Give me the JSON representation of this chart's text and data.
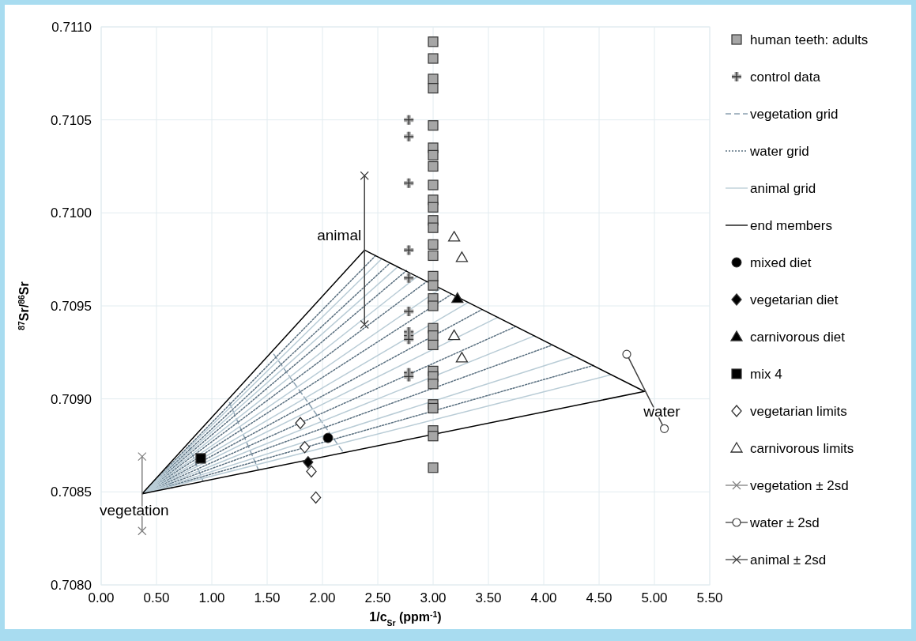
{
  "chart_data": {
    "type": "scatter",
    "xlabel": "1/c$_{Sr}$ (ppm$^{-1}$)",
    "ylabel": "$^{87}$Sr/$^{86}$Sr",
    "xlim": [
      0,
      5.5
    ],
    "ylim": [
      0.708,
      0.711
    ],
    "xticks": [
      {
        "value": 0,
        "label": "0.00"
      },
      {
        "value": 0.5,
        "label": "0.50"
      },
      {
        "value": 1,
        "label": "1.00"
      },
      {
        "value": 1.5,
        "label": "1.50"
      },
      {
        "value": 2,
        "label": "2.00"
      },
      {
        "value": 2.5,
        "label": "2.50"
      },
      {
        "value": 3,
        "label": "3.00"
      },
      {
        "value": 3.5,
        "label": "3.50"
      },
      {
        "value": 4,
        "label": "4.00"
      },
      {
        "value": 4.5,
        "label": "4.50"
      },
      {
        "value": 5,
        "label": "5.00"
      },
      {
        "value": 5.5,
        "label": "5.50"
      }
    ],
    "yticks": [
      {
        "value": 0.708,
        "label": "0.7080"
      },
      0.7085,
      {
        "value": 0.709,
        "label": "0.7090"
      },
      0.7095,
      {
        "value": 0.71,
        "label": "0.7100"
      },
      0.7105,
      {
        "value": 0.711,
        "label": "0.7110"
      }
    ],
    "grid": true,
    "legend": "right",
    "annotations": [
      {
        "text": "animal",
        "x": 2.38,
        "y": 0.7098
      },
      {
        "text": "water",
        "x": 4.91,
        "y": 0.70904
      },
      {
        "text": "vegetation",
        "x": 0.37,
        "y": 0.70849
      }
    ],
    "series": [
      {
        "name": "human teeth: adults",
        "type": "scatter",
        "marker": "square",
        "color": "#a6a6a6",
        "x": [
          3,
          3,
          3,
          3,
          3,
          3,
          3,
          3,
          3,
          3,
          3,
          3,
          3,
          3,
          3,
          3,
          3,
          3,
          3,
          3,
          3,
          3,
          3,
          3,
          3,
          3,
          3,
          3,
          3,
          3
        ],
        "values": [
          0.71092,
          0.71083,
          0.71072,
          0.71067,
          0.71047,
          0.71035,
          0.71031,
          0.71025,
          0.71015,
          0.71007,
          0.71003,
          0.70996,
          0.70992,
          0.70983,
          0.70977,
          0.70966,
          0.70961,
          0.70954,
          0.7095,
          0.70938,
          0.70934,
          0.70929,
          0.70915,
          0.70912,
          0.70908,
          0.70897,
          0.70895,
          0.70883,
          0.7088,
          0.70863
        ]
      },
      {
        "name": "control data",
        "type": "scatter",
        "marker": "cross",
        "color": "#a6a6a6",
        "x": [
          2.78,
          2.78,
          2.78,
          2.78,
          2.78,
          2.78,
          2.78,
          2.78,
          2.78,
          2.78,
          2.78
        ],
        "values": [
          0.7105,
          0.71041,
          0.71016,
          0.7098,
          0.70965,
          0.70947,
          0.70936,
          0.70934,
          0.70932,
          0.70914,
          0.70912
        ]
      },
      {
        "name": "vegetation grid",
        "type": "line",
        "line_style": "dashed",
        "color": "#8aa0b0",
        "x": [
          1.56,
          2.18,
          null,
          1.16,
          1.42,
          null,
          0.79,
          0.92,
          null,
          0.6,
          0.64
        ],
        "values": [
          0.70924,
          0.70872,
          null,
          0.70898,
          0.70862,
          null,
          0.70875,
          0.70856,
          null,
          0.70864,
          0.70852
        ]
      },
      {
        "name": "water grid",
        "type": "line",
        "line_style": "dotted",
        "color": "#5a7080",
        "x": [
          0.37,
          2.48,
          null,
          0.37,
          2.61,
          null,
          0.37,
          2.76,
          null,
          0.37,
          2.94,
          null,
          0.37,
          3.16,
          null,
          0.37,
          3.44,
          null,
          0.37,
          3.75,
          null,
          0.37,
          4.08,
          null,
          0.37,
          4.45
        ],
        "values": [
          0.70849,
          0.70977,
          null,
          0.70849,
          0.70973,
          null,
          0.70849,
          0.70969,
          null,
          0.70849,
          0.70963,
          null,
          0.70849,
          0.70956,
          null,
          0.70849,
          0.70948,
          null,
          0.70849,
          0.70939,
          null,
          0.70849,
          0.70929,
          null,
          0.70849,
          0.70918
        ]
      },
      {
        "name": "animal grid",
        "type": "line",
        "line_style": "solid",
        "color": "#b9ccd6",
        "x": [
          0.37,
          2.53,
          null,
          0.37,
          2.68,
          null,
          0.37,
          2.86,
          null,
          0.37,
          3.06,
          null,
          0.37,
          3.32,
          null,
          0.37,
          3.59,
          null,
          0.37,
          3.92,
          null,
          0.37,
          4.28,
          null,
          0.37,
          4.61
        ],
        "values": [
          0.70849,
          0.70975,
          null,
          0.70849,
          0.70971,
          null,
          0.70849,
          0.70966,
          null,
          0.70849,
          0.70959,
          null,
          0.70849,
          0.70952,
          null,
          0.70849,
          0.70944,
          null,
          0.70849,
          0.70934,
          null,
          0.70849,
          0.70923,
          null,
          0.70849,
          0.70913
        ]
      },
      {
        "name": "end members",
        "type": "line",
        "line_style": "solid",
        "color": "#000000",
        "x": [
          0.37,
          2.38,
          null,
          2.38,
          4.91,
          null,
          0.37,
          4.91
        ],
        "values": [
          0.70849,
          0.7098,
          null,
          0.7098,
          0.70904,
          null,
          0.70849,
          0.70904
        ]
      },
      {
        "name": "mixed diet",
        "type": "scatter",
        "marker": "circle",
        "color": "#000000",
        "x": [
          2.05
        ],
        "values": [
          0.70879
        ]
      },
      {
        "name": "vegetarian diet",
        "marker": "diamond",
        "color": "#000000",
        "x": [
          1.87
        ],
        "values": [
          0.70866
        ]
      },
      {
        "name": "carnivorous diet",
        "type": "scatter",
        "marker": "triangle",
        "color": "#000000",
        "x": [
          3.22
        ],
        "values": [
          0.70954
        ]
      },
      {
        "name": "mix 4",
        "type": "scatter",
        "marker": "square",
        "color": "#000000",
        "x": [
          0.9
        ],
        "values": [
          0.70868
        ]
      },
      {
        "name": "vegetarian limits",
        "type": "scatter",
        "marker": "diamond",
        "color": "#ffffff",
        "x": [
          1.8,
          1.84,
          1.9,
          1.94
        ],
        "values": [
          0.70887,
          0.70874,
          0.70861,
          0.70847
        ]
      },
      {
        "name": "carnivorous limits",
        "type": "scatter",
        "marker": "triangle",
        "color": "#ffffff",
        "x": [
          3.19,
          3.26,
          3.19,
          3.26
        ],
        "values": [
          0.70987,
          0.70976,
          0.70934,
          0.70922
        ]
      },
      {
        "name": "vegetation ± 2sd",
        "type": "line",
        "line_style": "solid",
        "marker": "cross",
        "color": "#808080",
        "x": [
          0.37,
          0.37
        ],
        "values": [
          0.70869,
          0.70829
        ]
      },
      {
        "name": "water ± 2sd",
        "type": "line",
        "line_style": "solid",
        "marker": "circle",
        "color": "#404040",
        "x": [
          4.75,
          5.09
        ],
        "values": [
          0.70924,
          0.70884
        ]
      },
      {
        "name": "animal ± 2sd",
        "type": "line",
        "line_style": "solid",
        "marker": "cross",
        "color": "#404040",
        "x": [
          2.38,
          2.38
        ],
        "values": [
          0.7102,
          0.7094
        ]
      }
    ]
  }
}
